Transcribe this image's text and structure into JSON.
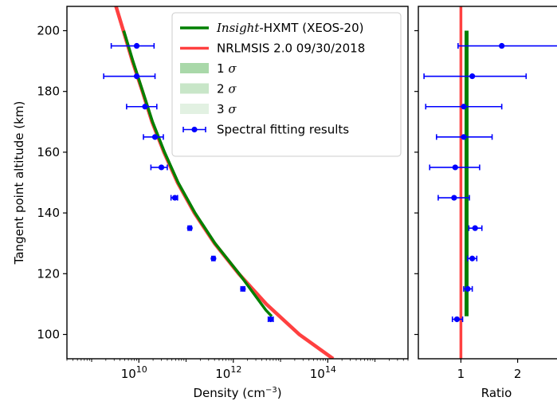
{
  "chart_data": [
    {
      "type": "line",
      "xlabel": "Density (cm",
      "xlabel_sup": "−3",
      "xlabel_end": ")",
      "ylabel": "Tangent point altitude (km)",
      "xscale": "log",
      "xlim": [
        300000000.0,
        5000000000000000.0
      ],
      "ylim": [
        92,
        208
      ],
      "xticks": [
        {
          "value": 10000000000.0,
          "base": "10",
          "exp": "10"
        },
        {
          "value": 1000000000000.0,
          "base": "10",
          "exp": "12"
        },
        {
          "value": 100000000000000.0,
          "base": "10",
          "exp": "14"
        }
      ],
      "yticks": [
        100,
        120,
        140,
        160,
        180,
        200
      ],
      "legend": {
        "position": "top-right",
        "entries": [
          {
            "italic": "Insight",
            "text": "-HXMT (XEOS-20)",
            "color": "#008000",
            "kind": "line"
          },
          {
            "text": "NRLMSIS 2.0 09/30/2018",
            "color": "#ff4040",
            "kind": "line"
          },
          {
            "text": "1 ",
            "greek": "σ",
            "color": "#a9d8a9",
            "kind": "patch"
          },
          {
            "text": "2 ",
            "greek": "σ",
            "color": "#c8e6c8",
            "kind": "patch"
          },
          {
            "text": "3 ",
            "greek": "σ",
            "color": "#e2f1e2",
            "kind": "patch"
          },
          {
            "text": "Spectral fitting results",
            "color": "#0000ff",
            "kind": "errorbar"
          }
        ]
      },
      "series": [
        {
          "name": "NRLMSIS 2.0 09/30/2018",
          "color": "#ff4040",
          "points": [
            [
              3000000000.0,
              210
            ],
            [
              4700000000.0,
              200
            ],
            [
              7300000000.0,
              190
            ],
            [
              11900000000.0,
              180
            ],
            [
              19000000000.0,
              170
            ],
            [
              34000000000.0,
              160
            ],
            [
              66000000000.0,
              150
            ],
            [
              150000000000.0,
              140
            ],
            [
              400000000000.0,
              130
            ],
            [
              1300000000000.0,
              120
            ],
            [
              5000000000000.0,
              110
            ],
            [
              25000000000000.0,
              100
            ],
            [
              130000000000000.0,
              92
            ]
          ]
        },
        {
          "name": "Insight-HXMT (XEOS-20)",
          "color": "#008000",
          "points": [
            [
              4800000000.0,
              200
            ],
            [
              7500000000.0,
              190
            ],
            [
              12100000000.0,
              180
            ],
            [
              19500000000.0,
              170
            ],
            [
              35000000000.0,
              160
            ],
            [
              68000000000.0,
              150
            ],
            [
              155000000000.0,
              140
            ],
            [
              410000000000.0,
              130
            ],
            [
              1330000000000.0,
              120
            ],
            [
              4900000000000.0,
              108
            ],
            [
              6500000000000.0,
              106
            ]
          ]
        },
        {
          "name": "Spectral fitting results",
          "color": "#0000ff",
          "points": [
            {
              "y": 105,
              "x": 6200000000000.0,
              "xmin": 5500000000000.0,
              "xmax": 7000000000000.0
            },
            {
              "y": 115,
              "x": 1600000000000.0,
              "xmin": 1450000000000.0,
              "xmax": 1750000000000.0
            },
            {
              "y": 125,
              "x": 380000000000.0,
              "xmin": 350000000000.0,
              "xmax": 410000000000.0
            },
            {
              "y": 135,
              "x": 120000000000.0,
              "xmin": 110000000000.0,
              "xmax": 130000000000.0
            },
            {
              "y": 145,
              "x": 58000000000.0,
              "xmin": 48000000000.0,
              "xmax": 66000000000.0
            },
            {
              "y": 155,
              "x": 30000000000.0,
              "xmin": 18000000000.0,
              "xmax": 40000000000.0
            },
            {
              "y": 165,
              "x": 22000000000.0,
              "xmin": 12500000000.0,
              "xmax": 33000000000.0
            },
            {
              "y": 175,
              "x": 13500000000.0,
              "xmin": 5500000000.0,
              "xmax": 24000000000.0
            },
            {
              "y": 185,
              "x": 9000000000.0,
              "xmin": 1800000000.0,
              "xmax": 22000000000.0
            },
            {
              "y": 195,
              "x": 9000000000.0,
              "xmin": 2600000000.0,
              "xmax": 21000000000.0
            }
          ]
        }
      ]
    },
    {
      "type": "line",
      "xlabel": "Ratio",
      "xlim": [
        0.25,
        2.75
      ],
      "ylim": [
        92,
        208
      ],
      "xticks": [
        1,
        2
      ],
      "series": [
        {
          "name": "reference",
          "color": "#ff4040",
          "kind": "vline",
          "x": 1.0
        },
        {
          "name": "Insight-HXMT (XEOS-20)",
          "color": "#008000",
          "kind": "vband",
          "x": 1.1,
          "y_range": [
            106,
            200
          ]
        },
        {
          "name": "Spectral fitting results",
          "color": "#0000ff",
          "points": [
            {
              "y": 105,
              "x": 0.93,
              "xmin": 0.85,
              "xmax": 1.03
            },
            {
              "y": 115,
              "x": 1.12,
              "xmin": 1.05,
              "xmax": 1.2
            },
            {
              "y": 125,
              "x": 1.2,
              "xmin": 1.12,
              "xmax": 1.28
            },
            {
              "y": 135,
              "x": 1.25,
              "xmin": 1.14,
              "xmax": 1.37
            },
            {
              "y": 145,
              "x": 0.88,
              "xmin": 0.6,
              "xmax": 1.15
            },
            {
              "y": 155,
              "x": 0.9,
              "xmin": 0.45,
              "xmax": 1.33
            },
            {
              "y": 165,
              "x": 1.05,
              "xmin": 0.57,
              "xmax": 1.55
            },
            {
              "y": 175,
              "x": 1.05,
              "xmin": 0.38,
              "xmax": 1.72
            },
            {
              "y": 185,
              "x": 1.2,
              "xmin": 0.35,
              "xmax": 2.15
            },
            {
              "y": 195,
              "x": 1.72,
              "xmin": 0.95,
              "xmax": 2.75
            }
          ]
        }
      ]
    }
  ]
}
